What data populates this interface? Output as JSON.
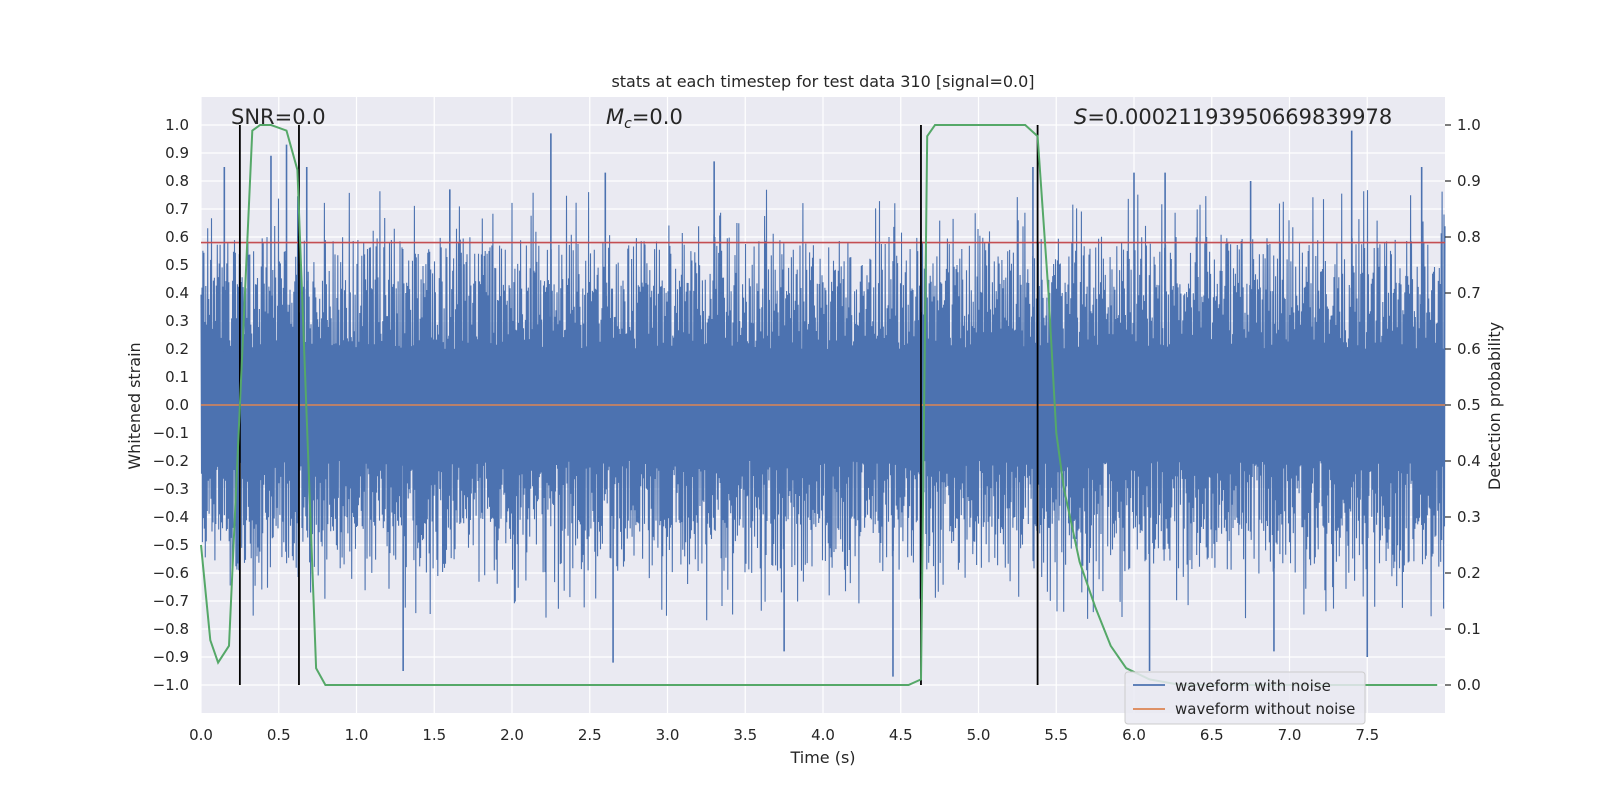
{
  "chart_data": {
    "type": "line",
    "title": "stats at each timestep for test data 310 [signal=0.0]",
    "xlabel": "Time (s)",
    "ylabel": "Whitened strain",
    "y2label": "Detection probability",
    "xlim": [
      0.0,
      8.0
    ],
    "ylim": [
      -1.1,
      1.1
    ],
    "y2lim": [
      -0.05,
      1.05
    ],
    "x_ticks": [
      "0.0",
      "0.5",
      "1.0",
      "1.5",
      "2.0",
      "2.5",
      "3.0",
      "3.5",
      "4.0",
      "4.5",
      "5.0",
      "5.5",
      "6.0",
      "6.5",
      "7.0",
      "7.5"
    ],
    "y_ticks": [
      "1.0",
      "0.9",
      "0.8",
      "0.7",
      "0.6",
      "0.5",
      "0.4",
      "0.3",
      "0.2",
      "0.1",
      "0.0",
      "−0.1",
      "−0.2",
      "−0.3",
      "−0.4",
      "−0.5",
      "−0.6",
      "−0.7",
      "−0.8",
      "−0.9",
      "−1.0"
    ],
    "y2_ticks": [
      "1.0",
      "0.9",
      "0.8",
      "0.7",
      "0.6",
      "0.5",
      "0.4",
      "0.3",
      "0.2",
      "0.1",
      "0.0"
    ],
    "threshold": 0.79,
    "vertical_lines": [
      0.25,
      0.63,
      4.63,
      5.38
    ],
    "annotations": {
      "snr": "SNR=0.0",
      "mc_symbol": "M",
      "mc_sub": "c",
      "mc_value": "=0.0",
      "s_symbol": "S",
      "s_value": "=0.00021193950669839978"
    },
    "legend": [
      {
        "name": "waveform with noise",
        "color": "#4c72b0"
      },
      {
        "name": "waveform without noise",
        "color": "#dd8452"
      }
    ],
    "series": [
      {
        "name": "waveform with noise",
        "color": "#4c72b0",
        "note": "dense noise envelope; spike peaks listed",
        "spikes": [
          [
            0.15,
            0.85
          ],
          [
            0.45,
            0.89
          ],
          [
            0.55,
            0.93
          ],
          [
            0.68,
            0.85
          ],
          [
            1.3,
            -0.95
          ],
          [
            1.6,
            0.77
          ],
          [
            2.25,
            0.97
          ],
          [
            2.6,
            0.83
          ],
          [
            2.65,
            -0.92
          ],
          [
            3.3,
            0.87
          ],
          [
            3.75,
            -0.88
          ],
          [
            4.45,
            -0.97
          ],
          [
            5.35,
            0.85
          ],
          [
            6.0,
            0.83
          ],
          [
            6.1,
            -0.95
          ],
          [
            6.2,
            0.83
          ],
          [
            6.75,
            0.8
          ],
          [
            6.9,
            -0.88
          ],
          [
            7.4,
            0.98
          ],
          [
            7.5,
            -0.9
          ],
          [
            7.85,
            0.85
          ]
        ]
      },
      {
        "name": "waveform without noise",
        "color": "#dd8452",
        "points": [
          [
            0.0,
            0.0
          ],
          [
            8.0,
            0.0
          ]
        ]
      },
      {
        "name": "Detection probability",
        "color": "#55a868",
        "axis": "right",
        "points": [
          [
            0.0,
            0.25
          ],
          [
            0.06,
            0.08
          ],
          [
            0.11,
            0.04
          ],
          [
            0.18,
            0.07
          ],
          [
            0.25,
            0.5
          ],
          [
            0.33,
            0.99
          ],
          [
            0.38,
            1.0
          ],
          [
            0.45,
            1.0
          ],
          [
            0.55,
            0.99
          ],
          [
            0.62,
            0.92
          ],
          [
            0.67,
            0.55
          ],
          [
            0.74,
            0.03
          ],
          [
            0.8,
            0.0
          ],
          [
            4.55,
            0.0
          ],
          [
            4.63,
            0.01
          ],
          [
            4.67,
            0.98
          ],
          [
            4.72,
            1.0
          ],
          [
            5.3,
            1.0
          ],
          [
            5.38,
            0.98
          ],
          [
            5.45,
            0.7
          ],
          [
            5.5,
            0.45
          ],
          [
            5.55,
            0.35
          ],
          [
            5.65,
            0.22
          ],
          [
            5.75,
            0.14
          ],
          [
            5.85,
            0.07
          ],
          [
            5.95,
            0.03
          ],
          [
            6.1,
            0.01
          ],
          [
            6.3,
            0.0
          ],
          [
            7.95,
            0.0
          ]
        ]
      }
    ]
  }
}
